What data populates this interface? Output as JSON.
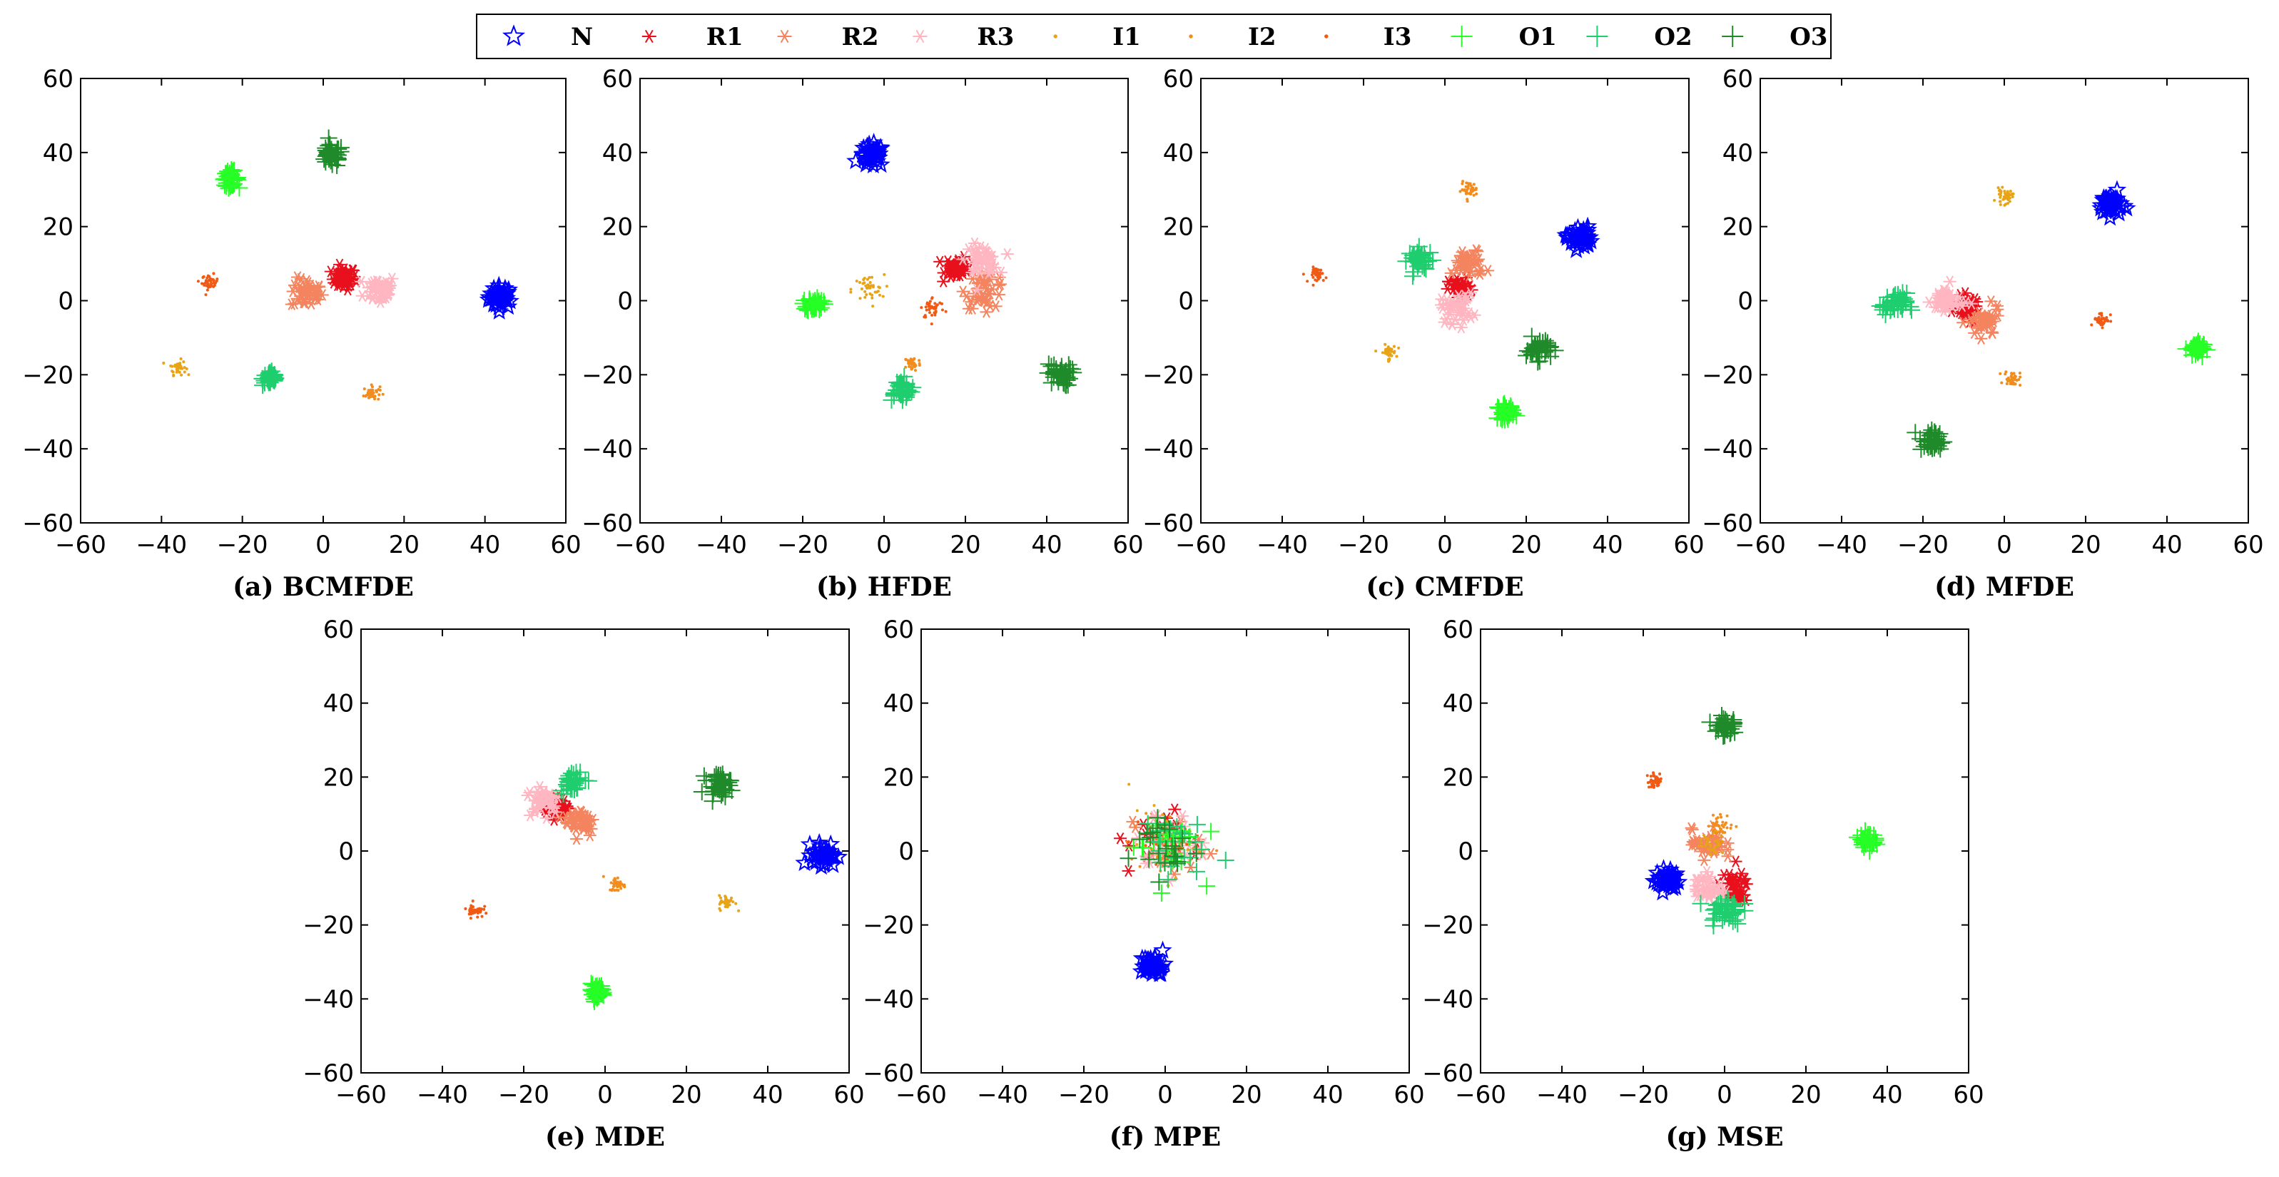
{
  "chart_data": {
    "series_styles": [
      {
        "key": "N",
        "label": "N",
        "color": "#0000ff",
        "marker": "star"
      },
      {
        "key": "R1",
        "label": "R1",
        "color": "#e8101c",
        "marker": "asterisk"
      },
      {
        "key": "R2",
        "label": "R2",
        "color": "#f4845f",
        "marker": "asterisk"
      },
      {
        "key": "R3",
        "label": "R3",
        "color": "#ffb6c1",
        "marker": "asterisk"
      },
      {
        "key": "I1",
        "label": "I1",
        "color": "#e8a317",
        "marker": "dot"
      },
      {
        "key": "I2",
        "label": "I2",
        "color": "#f28c1c",
        "marker": "dot"
      },
      {
        "key": "I3",
        "label": "I3",
        "color": "#f05a14",
        "marker": "dot"
      },
      {
        "key": "O1",
        "label": "O1",
        "color": "#26ff26",
        "marker": "plus"
      },
      {
        "key": "O2",
        "label": "O2",
        "color": "#1fce6e",
        "marker": "plus"
      },
      {
        "key": "O3",
        "label": "O3",
        "color": "#1f8a2a",
        "marker": "plus"
      }
    ],
    "charts": [
      {
        "type": "scatter",
        "title": "(a) BCMFDE",
        "xlim": [
          -60,
          60
        ],
        "ylim": [
          -60,
          60
        ],
        "xticks": [
          "−60",
          "−40",
          "−20",
          "0",
          "20",
          "40",
          "60"
        ],
        "yticks": [
          "−60",
          "−40",
          "−20",
          "0",
          "20",
          "40",
          "60"
        ],
        "clusters": [
          {
            "series": "N",
            "x": 44,
            "y": 1,
            "spread": 3
          },
          {
            "series": "R1",
            "x": 5,
            "y": 6,
            "spread": 3
          },
          {
            "series": "R2",
            "x": -4,
            "y": 2,
            "spread": 4
          },
          {
            "series": "R3",
            "x": 14,
            "y": 3,
            "spread": 4
          },
          {
            "series": "I1",
            "x": -36,
            "y": -18,
            "spread": 2
          },
          {
            "series": "I2",
            "x": 12,
            "y": -25,
            "spread": 2
          },
          {
            "series": "I3",
            "x": -28,
            "y": 5,
            "spread": 2
          },
          {
            "series": "O1",
            "x": -23,
            "y": 33,
            "spread": 2
          },
          {
            "series": "O2",
            "x": -13,
            "y": -21,
            "spread": 2
          },
          {
            "series": "O3",
            "x": 2,
            "y": 39,
            "spread": 3
          }
        ]
      },
      {
        "type": "scatter",
        "title": "(b) HFDE",
        "xlim": [
          -60,
          60
        ],
        "ylim": [
          -60,
          60
        ],
        "xticks": [
          "−60",
          "−40",
          "−20",
          "0",
          "20",
          "40",
          "60"
        ],
        "yticks": [
          "−60",
          "−40",
          "−20",
          "0",
          "20",
          "40",
          "60"
        ],
        "clusters": [
          {
            "series": "N",
            "x": -3,
            "y": 39,
            "spread": 3
          },
          {
            "series": "R1",
            "x": 18,
            "y": 9,
            "spread": 3
          },
          {
            "series": "R2",
            "x": 25,
            "y": 3,
            "spread": 5
          },
          {
            "series": "R3",
            "x": 24,
            "y": 11,
            "spread": 4
          },
          {
            "series": "I1",
            "x": -4,
            "y": 3,
            "spread": 4
          },
          {
            "series": "I2",
            "x": 7,
            "y": -17,
            "spread": 2
          },
          {
            "series": "I3",
            "x": 12,
            "y": -2,
            "spread": 3
          },
          {
            "series": "O1",
            "x": -17,
            "y": -1,
            "spread": 2
          },
          {
            "series": "O2",
            "x": 4,
            "y": -24,
            "spread": 3
          },
          {
            "series": "O3",
            "x": 43,
            "y": -20,
            "spread": 3
          }
        ]
      },
      {
        "type": "scatter",
        "title": "(c) CMFDE",
        "xlim": [
          -60,
          60
        ],
        "ylim": [
          -60,
          60
        ],
        "xticks": [
          "−60",
          "−40",
          "−20",
          "0",
          "20",
          "40",
          "60"
        ],
        "yticks": [
          "−60",
          "−40",
          "−20",
          "0",
          "20",
          "40",
          "60"
        ],
        "clusters": [
          {
            "series": "N",
            "x": 33,
            "y": 17,
            "spread": 3
          },
          {
            "series": "R1",
            "x": 4,
            "y": 3,
            "spread": 3
          },
          {
            "series": "R2",
            "x": 6,
            "y": 10,
            "spread": 4
          },
          {
            "series": "R3",
            "x": 3,
            "y": -2,
            "spread": 4
          },
          {
            "series": "I1",
            "x": -14,
            "y": -14,
            "spread": 2
          },
          {
            "series": "I2",
            "x": 6,
            "y": 30,
            "spread": 2
          },
          {
            "series": "I3",
            "x": -31,
            "y": 7,
            "spread": 2
          },
          {
            "series": "O1",
            "x": 15,
            "y": -30,
            "spread": 2
          },
          {
            "series": "O2",
            "x": -6,
            "y": 11,
            "spread": 3
          },
          {
            "series": "O3",
            "x": 23,
            "y": -13,
            "spread": 3
          }
        ]
      },
      {
        "type": "scatter",
        "title": "(d) MFDE",
        "xlim": [
          -60,
          60
        ],
        "ylim": [
          -60,
          60
        ],
        "xticks": [
          "−60",
          "−40",
          "−20",
          "0",
          "20",
          "40",
          "60"
        ],
        "yticks": [
          "−60",
          "−40",
          "−20",
          "0",
          "20",
          "40",
          "60"
        ],
        "clusters": [
          {
            "series": "N",
            "x": 26,
            "y": 26,
            "spread": 3
          },
          {
            "series": "R1",
            "x": -9,
            "y": -2,
            "spread": 3
          },
          {
            "series": "R2",
            "x": -5,
            "y": -6,
            "spread": 4
          },
          {
            "series": "R3",
            "x": -14,
            "y": 0,
            "spread": 4
          },
          {
            "series": "I1",
            "x": 0,
            "y": 28,
            "spread": 2
          },
          {
            "series": "I2",
            "x": 2,
            "y": -21,
            "spread": 2
          },
          {
            "series": "I3",
            "x": 24,
            "y": -5,
            "spread": 2
          },
          {
            "series": "O1",
            "x": 47,
            "y": -13,
            "spread": 2
          },
          {
            "series": "O2",
            "x": -27,
            "y": -1,
            "spread": 3
          },
          {
            "series": "O3",
            "x": -18,
            "y": -38,
            "spread": 3
          }
        ]
      },
      {
        "type": "scatter",
        "title": "(e) MDE",
        "xlim": [
          -60,
          60
        ],
        "ylim": [
          -60,
          60
        ],
        "xticks": [
          "−60",
          "−40",
          "−20",
          "0",
          "20",
          "40",
          "60"
        ],
        "yticks": [
          "−60",
          "−40",
          "−20",
          "0",
          "20",
          "40",
          "60"
        ],
        "clusters": [
          {
            "series": "N",
            "x": 54,
            "y": -1,
            "spread": 3
          },
          {
            "series": "R1",
            "x": -12,
            "y": 12,
            "spread": 3
          },
          {
            "series": "R2",
            "x": -6,
            "y": 8,
            "spread": 4
          },
          {
            "series": "R3",
            "x": -15,
            "y": 14,
            "spread": 4
          },
          {
            "series": "I1",
            "x": 30,
            "y": -14,
            "spread": 2
          },
          {
            "series": "I2",
            "x": 3,
            "y": -9,
            "spread": 2
          },
          {
            "series": "I3",
            "x": -32,
            "y": -16,
            "spread": 2
          },
          {
            "series": "O1",
            "x": -2,
            "y": -38,
            "spread": 2
          },
          {
            "series": "O2",
            "x": -8,
            "y": 19,
            "spread": 3
          },
          {
            "series": "O3",
            "x": 28,
            "y": 18,
            "spread": 3
          }
        ]
      },
      {
        "type": "scatter",
        "title": "(f) MPE",
        "xlim": [
          -60,
          60
        ],
        "ylim": [
          -60,
          60
        ],
        "xticks": [
          "−60",
          "−40",
          "−20",
          "0",
          "20",
          "40",
          "60"
        ],
        "yticks": [
          "−60",
          "−40",
          "−20",
          "0",
          "20",
          "40",
          "60"
        ],
        "clusters": [
          {
            "series": "N",
            "x": -3,
            "y": -31,
            "spread": 3
          },
          {
            "series": "R1",
            "x": 0,
            "y": 2,
            "spread": 9
          },
          {
            "series": "R2",
            "x": 0,
            "y": 2,
            "spread": 9
          },
          {
            "series": "R3",
            "x": 0,
            "y": 2,
            "spread": 9
          },
          {
            "series": "I1",
            "x": 0,
            "y": 2,
            "spread": 9
          },
          {
            "series": "I2",
            "x": 0,
            "y": 2,
            "spread": 9
          },
          {
            "series": "I3",
            "x": 0,
            "y": 2,
            "spread": 9
          },
          {
            "series": "O1",
            "x": 0,
            "y": 2,
            "spread": 9
          },
          {
            "series": "O2",
            "x": 0,
            "y": 2,
            "spread": 9
          },
          {
            "series": "O3",
            "x": 0,
            "y": 2,
            "spread": 9
          }
        ]
      },
      {
        "type": "scatter",
        "title": "(g) MSE",
        "xlim": [
          -60,
          60
        ],
        "ylim": [
          -60,
          60
        ],
        "xticks": [
          "−60",
          "−40",
          "−20",
          "0",
          "20",
          "40",
          "60"
        ],
        "yticks": [
          "−60",
          "−40",
          "−20",
          "0",
          "20",
          "40",
          "60"
        ],
        "clusters": [
          {
            "series": "N",
            "x": -14,
            "y": -8,
            "spread": 3
          },
          {
            "series": "R1",
            "x": 2,
            "y": -10,
            "spread": 4
          },
          {
            "series": "R2",
            "x": -4,
            "y": 2,
            "spread": 4
          },
          {
            "series": "R3",
            "x": -4,
            "y": -10,
            "spread": 4
          },
          {
            "series": "I1",
            "x": -3,
            "y": 2,
            "spread": 3
          },
          {
            "series": "I2",
            "x": -1,
            "y": 7,
            "spread": 3
          },
          {
            "series": "I3",
            "x": -17,
            "y": 19,
            "spread": 2
          },
          {
            "series": "O1",
            "x": 35,
            "y": 3,
            "spread": 2
          },
          {
            "series": "O2",
            "x": 0,
            "y": -16,
            "spread": 4
          },
          {
            "series": "O3",
            "x": 0,
            "y": 34,
            "spread": 3
          }
        ]
      }
    ]
  }
}
